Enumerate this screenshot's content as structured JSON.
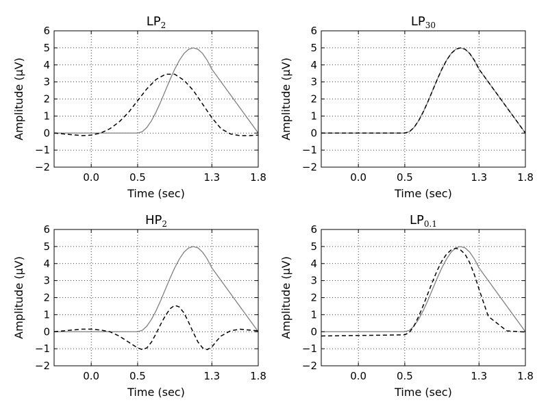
{
  "colors": {
    "original": "#808080",
    "filtered": "#000000"
  },
  "chart_data": [
    {
      "type": "line",
      "title": "LP",
      "title_sub": "2",
      "xlabel": "Time (sec)",
      "ylabel": "Amplitude (μV)",
      "xlim": [
        -0.4,
        1.8
      ],
      "ylim": [
        -2,
        6
      ],
      "xticks": [
        0.0,
        0.5,
        1.3,
        1.8
      ],
      "xtick_labels": [
        "0.0",
        "0.5",
        "1.3",
        "1.8"
      ],
      "yticks": [
        -2,
        -1,
        0,
        1,
        2,
        3,
        4,
        5,
        6
      ],
      "ytick_labels": [
        "−2",
        "−1",
        "0",
        "1",
        "2",
        "3",
        "4",
        "5",
        "6"
      ],
      "grid": true,
      "series": [
        {
          "style": "solid-gray",
          "x": [
            -0.4,
            0.5,
            0.55,
            0.6,
            0.65,
            0.7,
            0.75,
            0.8,
            0.85,
            0.9,
            0.95,
            1.0,
            1.05,
            1.1,
            1.15,
            1.2,
            1.25,
            1.3,
            1.8
          ],
          "y": [
            0,
            0,
            0.08,
            0.33,
            0.73,
            1.25,
            1.85,
            2.5,
            3.15,
            3.75,
            4.27,
            4.67,
            4.92,
            5.0,
            4.92,
            4.67,
            4.27,
            3.75,
            0
          ]
        },
        {
          "style": "dashed-black",
          "x": [
            -0.4,
            -0.3,
            -0.2,
            -0.1,
            0.0,
            0.1,
            0.2,
            0.3,
            0.4,
            0.5,
            0.6,
            0.7,
            0.8,
            0.9,
            1.0,
            1.1,
            1.2,
            1.3,
            1.4,
            1.5,
            1.6,
            1.7,
            1.8
          ],
          "y": [
            0,
            -0.05,
            -0.1,
            -0.15,
            -0.12,
            0.0,
            0.25,
            0.65,
            1.2,
            1.9,
            2.6,
            3.15,
            3.45,
            3.45,
            3.1,
            2.5,
            1.7,
            0.9,
            0.25,
            -0.05,
            -0.15,
            -0.15,
            -0.12
          ]
        }
      ]
    },
    {
      "type": "line",
      "title": "LP",
      "title_sub": "30",
      "xlabel": "Time (sec)",
      "ylabel": "Amplitude (μV)",
      "xlim": [
        -0.4,
        1.8
      ],
      "ylim": [
        -2,
        6
      ],
      "xticks": [
        0.0,
        0.5,
        1.3,
        1.8
      ],
      "xtick_labels": [
        "0.0",
        "0.5",
        "1.3",
        "1.8"
      ],
      "yticks": [
        -2,
        -1,
        0,
        1,
        2,
        3,
        4,
        5,
        6
      ],
      "ytick_labels": [
        "−2",
        "−1",
        "0",
        "1",
        "2",
        "3",
        "4",
        "5",
        "6"
      ],
      "grid": true,
      "series": [
        {
          "style": "solid-gray",
          "x": [
            -0.4,
            0.5,
            0.55,
            0.6,
            0.65,
            0.7,
            0.75,
            0.8,
            0.85,
            0.9,
            0.95,
            1.0,
            1.05,
            1.1,
            1.15,
            1.2,
            1.25,
            1.3,
            1.8
          ],
          "y": [
            0,
            0,
            0.08,
            0.33,
            0.73,
            1.25,
            1.85,
            2.5,
            3.15,
            3.75,
            4.27,
            4.67,
            4.92,
            5.0,
            4.92,
            4.67,
            4.27,
            3.75,
            0
          ]
        },
        {
          "style": "dashed-black",
          "x": [
            -0.4,
            0.5,
            0.55,
            0.6,
            0.65,
            0.7,
            0.75,
            0.8,
            0.85,
            0.9,
            0.95,
            1.0,
            1.05,
            1.1,
            1.15,
            1.2,
            1.25,
            1.3,
            1.8
          ],
          "y": [
            0,
            0,
            0.08,
            0.33,
            0.73,
            1.25,
            1.85,
            2.5,
            3.15,
            3.75,
            4.27,
            4.67,
            4.92,
            5.0,
            4.92,
            4.67,
            4.27,
            3.75,
            0
          ]
        }
      ]
    },
    {
      "type": "line",
      "title": "HP",
      "title_sub": "2",
      "xlabel": "Time (sec)",
      "ylabel": "Amplitude (μV)",
      "xlim": [
        -0.4,
        1.8
      ],
      "ylim": [
        -2,
        6
      ],
      "xticks": [
        0.0,
        0.5,
        1.3,
        1.8
      ],
      "xtick_labels": [
        "0.0",
        "0.5",
        "1.3",
        "1.8"
      ],
      "yticks": [
        -2,
        -1,
        0,
        1,
        2,
        3,
        4,
        5,
        6
      ],
      "ytick_labels": [
        "−2",
        "−1",
        "0",
        "1",
        "2",
        "3",
        "4",
        "5",
        "6"
      ],
      "grid": true,
      "series": [
        {
          "style": "solid-gray",
          "x": [
            -0.4,
            0.5,
            0.55,
            0.6,
            0.65,
            0.7,
            0.75,
            0.8,
            0.85,
            0.9,
            0.95,
            1.0,
            1.05,
            1.1,
            1.15,
            1.2,
            1.25,
            1.3,
            1.8
          ],
          "y": [
            0,
            0,
            0.08,
            0.33,
            0.73,
            1.25,
            1.85,
            2.5,
            3.15,
            3.75,
            4.27,
            4.67,
            4.92,
            5.0,
            4.92,
            4.67,
            4.27,
            3.75,
            0
          ]
        },
        {
          "style": "dashed-black",
          "x": [
            -0.4,
            -0.3,
            -0.2,
            -0.1,
            0.0,
            0.1,
            0.2,
            0.3,
            0.4,
            0.5,
            0.55,
            0.6,
            0.65,
            0.7,
            0.75,
            0.8,
            0.85,
            0.9,
            0.95,
            1.0,
            1.05,
            1.1,
            1.15,
            1.2,
            1.25,
            1.3,
            1.35,
            1.4,
            1.5,
            1.6,
            1.7,
            1.8
          ],
          "y": [
            0,
            0.05,
            0.1,
            0.15,
            0.15,
            0.1,
            0.0,
            -0.25,
            -0.6,
            -0.95,
            -1.05,
            -0.95,
            -0.6,
            -0.1,
            0.45,
            0.95,
            1.35,
            1.55,
            1.45,
            1.1,
            0.55,
            -0.05,
            -0.6,
            -0.95,
            -1.05,
            -0.9,
            -0.55,
            -0.25,
            0.05,
            0.15,
            0.1,
            0.05
          ]
        }
      ]
    },
    {
      "type": "line",
      "title": "LP",
      "title_sub": "0.1",
      "xlabel": "Time (sec)",
      "ylabel": "Amplitude (μV)",
      "xlim": [
        -0.4,
        1.8
      ],
      "ylim": [
        -2,
        6
      ],
      "xticks": [
        0.0,
        0.5,
        1.3,
        1.8
      ],
      "xtick_labels": [
        "0.0",
        "0.5",
        "1.3",
        "1.8"
      ],
      "yticks": [
        -2,
        -1,
        0,
        1,
        2,
        3,
        4,
        5,
        6
      ],
      "ytick_labels": [
        "−2",
        "−1",
        "0",
        "1",
        "2",
        "3",
        "4",
        "5",
        "6"
      ],
      "grid": true,
      "series": [
        {
          "style": "solid-gray",
          "x": [
            -0.4,
            0.5,
            0.55,
            0.6,
            0.65,
            0.7,
            0.75,
            0.8,
            0.85,
            0.9,
            0.95,
            1.0,
            1.05,
            1.1,
            1.15,
            1.2,
            1.25,
            1.3,
            1.8
          ],
          "y": [
            0,
            0,
            0.08,
            0.33,
            0.73,
            1.25,
            1.85,
            2.5,
            3.15,
            3.75,
            4.27,
            4.67,
            4.92,
            5.0,
            4.92,
            4.67,
            4.27,
            3.75,
            0
          ]
        },
        {
          "style": "dashed-black",
          "x": [
            -0.4,
            0.0,
            0.3,
            0.5,
            0.55,
            0.6,
            0.65,
            0.7,
            0.75,
            0.8,
            0.85,
            0.9,
            0.95,
            1.0,
            1.05,
            1.1,
            1.15,
            1.2,
            1.25,
            1.3,
            1.4,
            1.6,
            1.8
          ],
          "y": [
            -0.25,
            -0.22,
            -0.2,
            -0.18,
            -0.05,
            0.35,
            0.9,
            1.55,
            2.25,
            2.95,
            3.6,
            4.15,
            4.55,
            4.8,
            4.9,
            4.8,
            4.55,
            4.05,
            3.35,
            2.5,
            0.9,
            0.05,
            -0.02
          ]
        }
      ]
    }
  ]
}
